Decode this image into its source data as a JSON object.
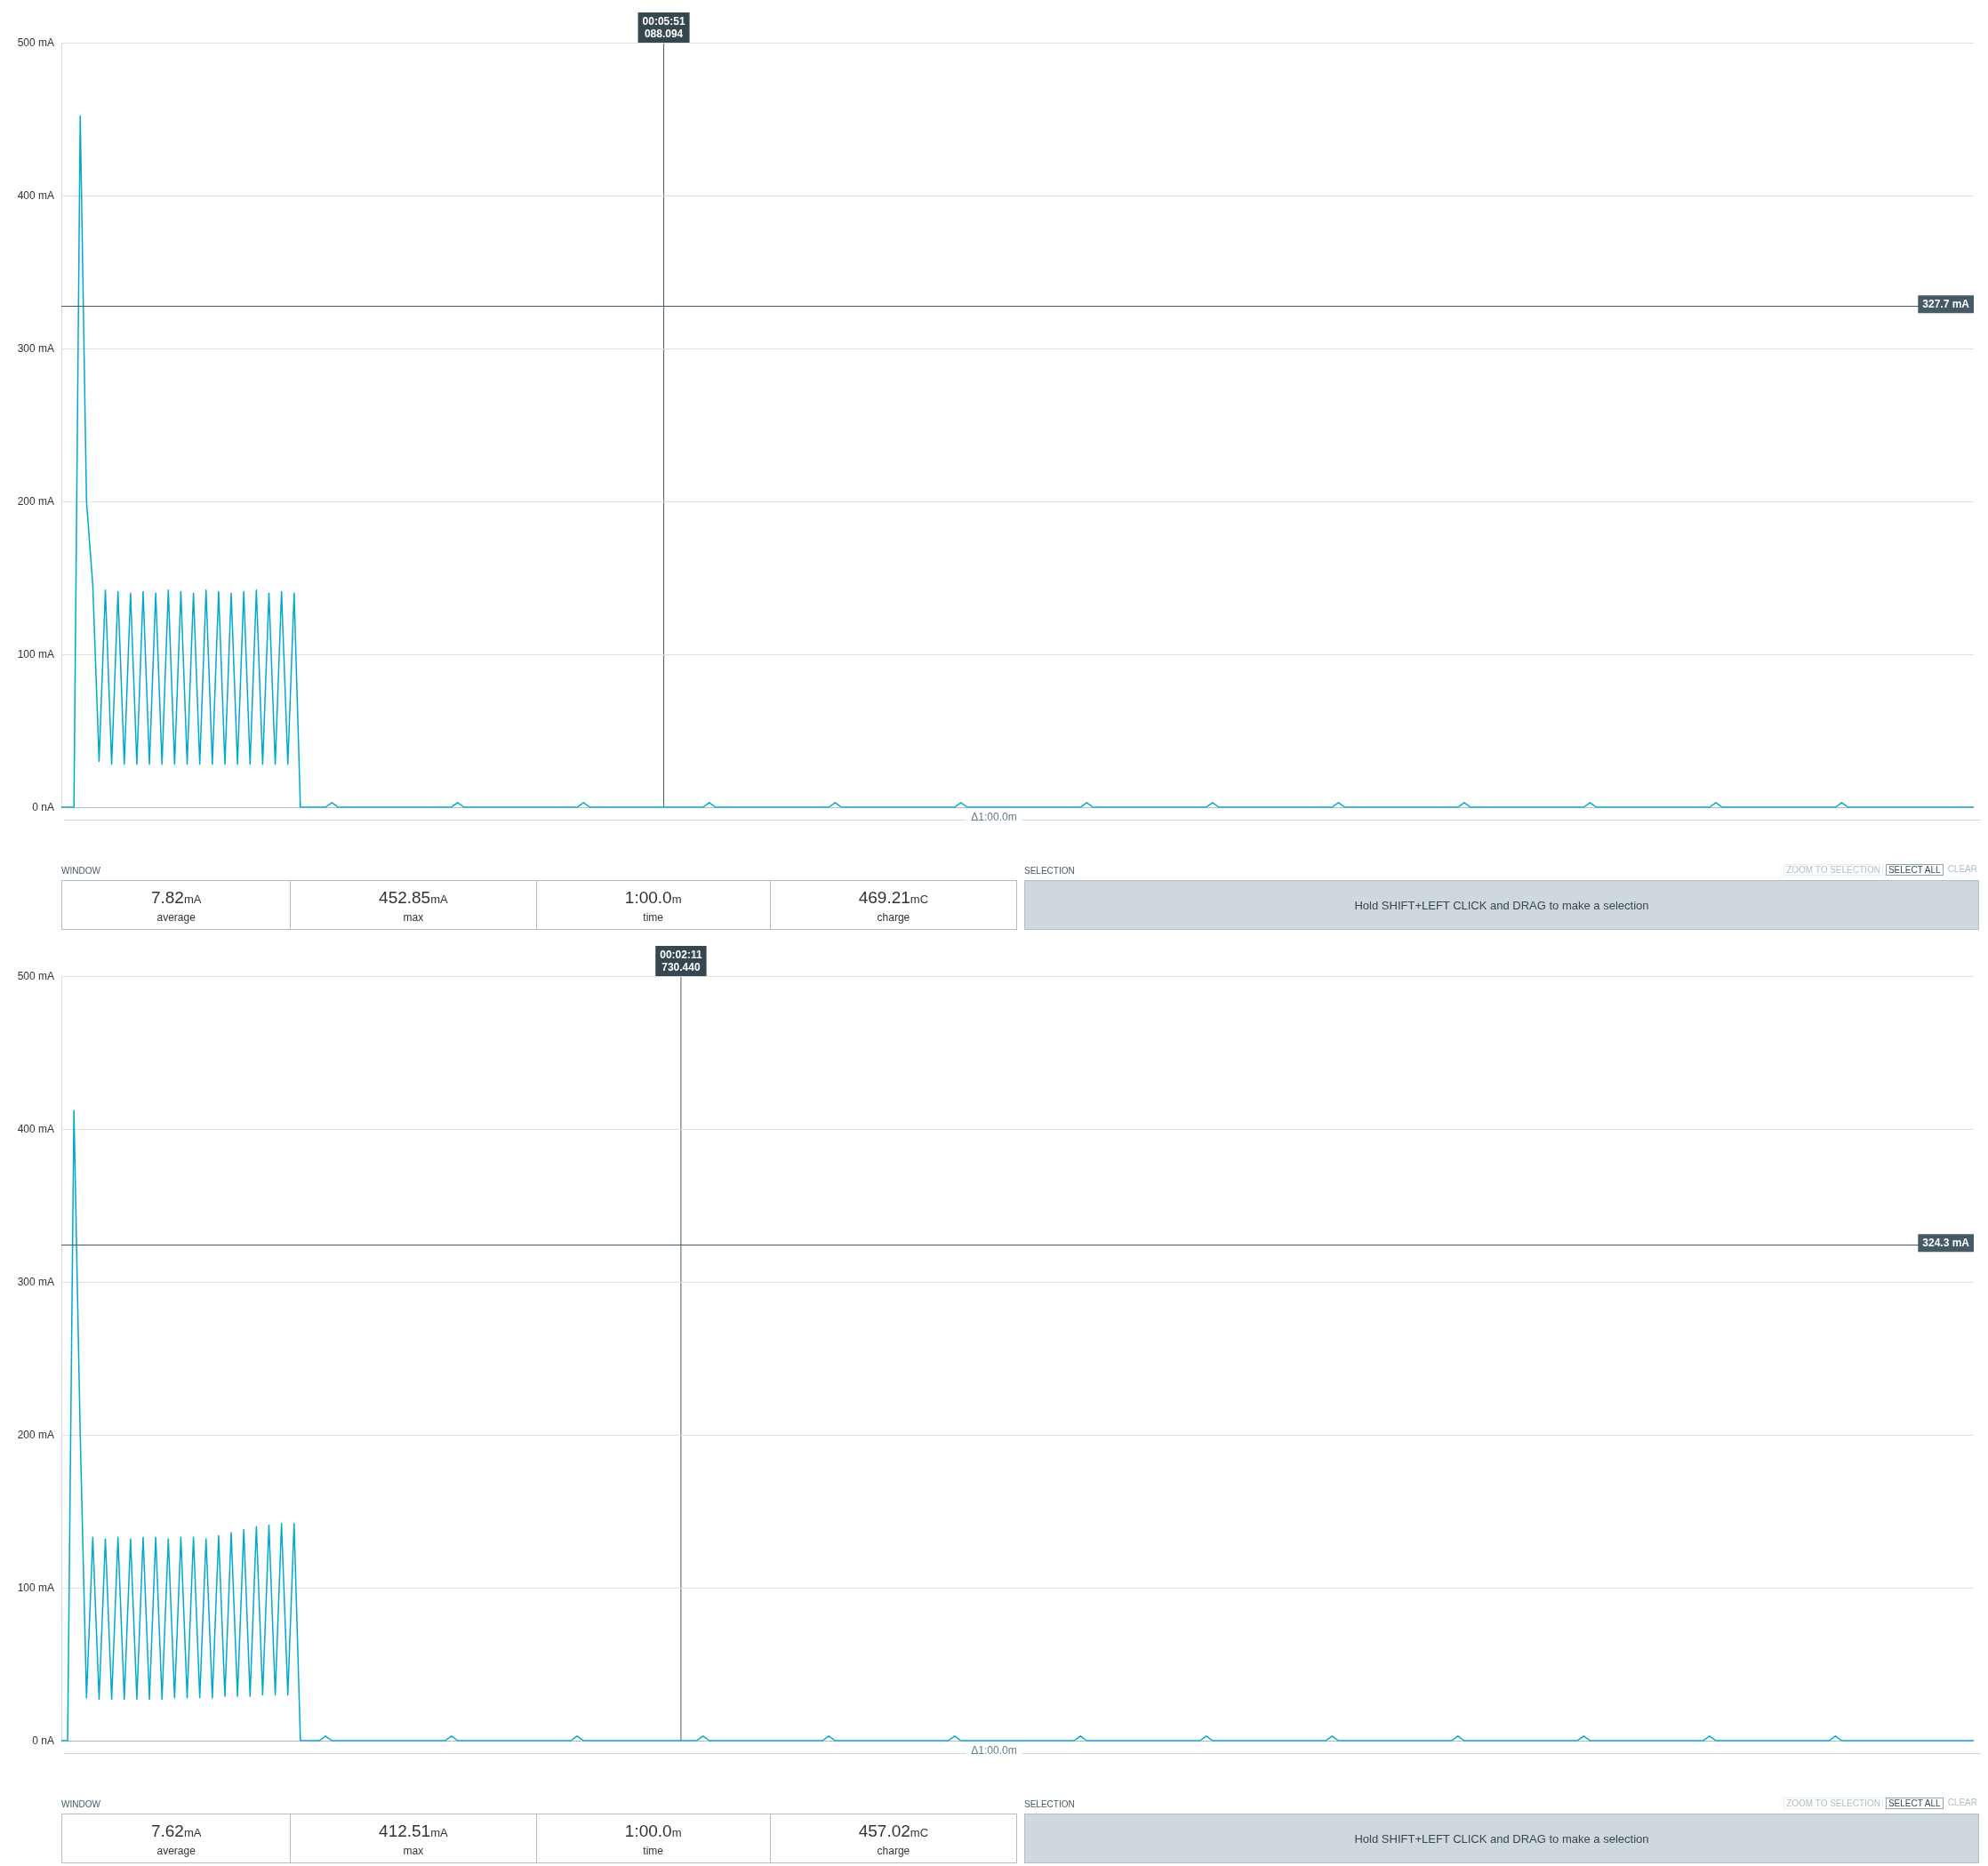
{
  "chart_data": [
    {
      "type": "line",
      "color": "#00a9ce",
      "line_style": "solid",
      "grid": "y",
      "tick_labels": "y",
      "categories": [
        null,
        null,
        null,
        null,
        null,
        null,
        null,
        null,
        null,
        null,
        null,
        null,
        null,
        null,
        null,
        null,
        null,
        null,
        null,
        null,
        null,
        null,
        null,
        null,
        null,
        null,
        null,
        null,
        null,
        null,
        null,
        null,
        null,
        null,
        null,
        null,
        null,
        null,
        null,
        null,
        null,
        null,
        null,
        null,
        null,
        null,
        null,
        null,
        null,
        null,
        null,
        null,
        null,
        null,
        null,
        null,
        null,
        null,
        null,
        null,
        null,
        null,
        null,
        null,
        null,
        null,
        null,
        null,
        null,
        null,
        null,
        null,
        null,
        null,
        null,
        null,
        null,
        null,
        null,
        null,
        null,
        null,
        null,
        null,
        null,
        null,
        null,
        null,
        null,
        null,
        null,
        null,
        null,
        null,
        null,
        null,
        null,
        null,
        null,
        null,
        null,
        null,
        null,
        null,
        null,
        null,
        null,
        null,
        null,
        null,
        null,
        null,
        null,
        null,
        null,
        null,
        null,
        null,
        null,
        null,
        null,
        null,
        null,
        null,
        null,
        null,
        null,
        null,
        null,
        null,
        null,
        null,
        null,
        null,
        null,
        null,
        null,
        null,
        null,
        null,
        null,
        null,
        null,
        null,
        null,
        null,
        null,
        null,
        null,
        null,
        null,
        null,
        null,
        null,
        null,
        null,
        null,
        null,
        null,
        null,
        null,
        null,
        null,
        null,
        null,
        null,
        null,
        null,
        null,
        null,
        null,
        null,
        null,
        null,
        null,
        null,
        null,
        null,
        null,
        null,
        null,
        null,
        null,
        null,
        null,
        null,
        null,
        null,
        null,
        null,
        null,
        null,
        null,
        null,
        null,
        null,
        null,
        null,
        null,
        null,
        null,
        null,
        null,
        null,
        null,
        null,
        null,
        null,
        null,
        null,
        null,
        null,
        null,
        null,
        null,
        null,
        null,
        null,
        null,
        null,
        null,
        null,
        null,
        null,
        null,
        null,
        null,
        null,
        null,
        null,
        null,
        null,
        null,
        null,
        null,
        null,
        null,
        null,
        null,
        null,
        null,
        null,
        null,
        null,
        null,
        null,
        null,
        null,
        null,
        null,
        null,
        null,
        null,
        null,
        null,
        null,
        null,
        null,
        null,
        null,
        null,
        null,
        null,
        null,
        null,
        null,
        null,
        null,
        null,
        null,
        null,
        null,
        null,
        null,
        null,
        null,
        null,
        null,
        null,
        null,
        null,
        null,
        null,
        null,
        null,
        null,
        null,
        null,
        null,
        null,
        null,
        null,
        null,
        null,
        null,
        null,
        null,
        null,
        null,
        null,
        null,
        null,
        null,
        null,
        null
      ],
      "values": [
        0,
        0,
        0,
        452,
        200,
        145,
        30,
        142,
        28,
        141,
        28,
        140,
        28,
        141,
        28,
        140,
        28,
        142,
        28,
        141,
        28,
        140,
        28,
        142,
        28,
        141,
        28,
        140,
        28,
        141,
        28,
        142,
        28,
        140,
        28,
        141,
        28,
        140,
        0,
        0,
        0,
        0,
        0,
        3,
        0,
        0,
        0,
        0,
        0,
        0,
        0,
        0,
        0,
        0,
        0,
        0,
        0,
        0,
        0,
        0,
        0,
        0,
        0,
        3,
        0,
        0,
        0,
        0,
        0,
        0,
        0,
        0,
        0,
        0,
        0,
        0,
        0,
        0,
        0,
        0,
        0,
        0,
        0,
        3,
        0,
        0,
        0,
        0,
        0,
        0,
        0,
        0,
        0,
        0,
        0,
        0,
        0,
        0,
        0,
        0,
        0,
        0,
        0,
        3,
        0,
        0,
        0,
        0,
        0,
        0,
        0,
        0,
        0,
        0,
        0,
        0,
        0,
        0,
        0,
        0,
        0,
        0,
        0,
        3,
        0,
        0,
        0,
        0,
        0,
        0,
        0,
        0,
        0,
        0,
        0,
        0,
        0,
        0,
        0,
        0,
        0,
        0,
        0,
        3,
        0,
        0,
        0,
        0,
        0,
        0,
        0,
        0,
        0,
        0,
        0,
        0,
        0,
        0,
        0,
        0,
        0,
        0,
        0,
        3,
        0,
        0,
        0,
        0,
        0,
        0,
        0,
        0,
        0,
        0,
        0,
        0,
        0,
        0,
        0,
        0,
        0,
        0,
        0,
        3,
        0,
        0,
        0,
        0,
        0,
        0,
        0,
        0,
        0,
        0,
        0,
        0,
        0,
        0,
        0,
        0,
        0,
        0,
        0,
        3,
        0,
        0,
        0,
        0,
        0,
        0,
        0,
        0,
        0,
        0,
        0,
        0,
        0,
        0,
        0,
        0,
        0,
        0,
        0,
        3,
        0,
        0,
        0,
        0,
        0,
        0,
        0,
        0,
        0,
        0,
        0,
        0,
        0,
        0,
        0,
        0,
        0,
        0,
        0,
        3,
        0,
        0,
        0,
        0,
        0,
        0,
        0,
        0,
        0,
        0,
        0,
        0,
        0,
        0,
        0,
        0,
        0,
        0,
        0,
        3,
        0,
        0,
        0,
        0,
        0,
        0,
        0,
        0,
        0,
        0,
        0,
        0,
        0,
        0,
        0,
        0,
        0,
        0,
        0,
        3,
        0,
        0,
        0,
        0,
        0,
        0,
        0,
        0,
        0,
        0,
        0,
        0,
        0,
        0,
        0,
        0,
        0,
        0,
        0,
        0,
        0
      ],
      "ylim": [
        0,
        500
      ],
      "yticks": [
        {
          "value": 0,
          "label": "0 nA"
        },
        {
          "value": 100,
          "label": "100 mA"
        },
        {
          "value": 200,
          "label": "200 mA"
        },
        {
          "value": 300,
          "label": "300 mA"
        },
        {
          "value": 400,
          "label": "400 mA"
        },
        {
          "value": 500,
          "label": "500 mA"
        }
      ],
      "ref_lines": [
        {
          "axis": "y",
          "value": 327.7,
          "label": "327.7 mA",
          "color": "#455a64"
        }
      ],
      "annotations": [
        "Δ1:00.0m",
        "00:05:51\n088.094"
      ]
    },
    {
      "type": "other",
      "annotations": [
        "WINDOW",
        "7.82mA",
        "average",
        "452.85mA",
        "max",
        "1:00.0m",
        "time",
        "469.21mC",
        "charge",
        "SELECTION",
        "ZOOM TO SELECTION",
        "SELECT ALL",
        "CLEAR",
        "Hold SHIFT+LEFT CLICK and DRAG to make a selection"
      ]
    },
    {
      "type": "line",
      "color": "#00a9ce",
      "line_style": "solid",
      "grid": "y",
      "tick_labels": "y",
      "categories": [
        null,
        null,
        null,
        null,
        null,
        null,
        null,
        null,
        null,
        null,
        null,
        null,
        null,
        null,
        null,
        null,
        null,
        null,
        null,
        null,
        null,
        null,
        null,
        null,
        null,
        null,
        null,
        null,
        null,
        null,
        null,
        null,
        null,
        null,
        null,
        null,
        null,
        null,
        null,
        null,
        null,
        null,
        null,
        null,
        null,
        null,
        null,
        null,
        null,
        null,
        null,
        null,
        null,
        null,
        null,
        null,
        null,
        null,
        null,
        null,
        null,
        null,
        null,
        null,
        null,
        null,
        null,
        null,
        null,
        null,
        null,
        null,
        null,
        null,
        null,
        null,
        null,
        null,
        null,
        null,
        null,
        null,
        null,
        null,
        null,
        null,
        null,
        null,
        null,
        null,
        null,
        null,
        null,
        null,
        null,
        null,
        null,
        null,
        null,
        null,
        null,
        null,
        null,
        null,
        null,
        null,
        null,
        null,
        null,
        null,
        null,
        null,
        null,
        null,
        null,
        null,
        null,
        null,
        null,
        null,
        null,
        null,
        null,
        null,
        null,
        null,
        null,
        null,
        null,
        null,
        null,
        null,
        null,
        null,
        null,
        null,
        null,
        null,
        null,
        null,
        null,
        null,
        null,
        null,
        null,
        null,
        null,
        null,
        null,
        null,
        null,
        null,
        null,
        null,
        null,
        null,
        null,
        null,
        null,
        null,
        null,
        null,
        null,
        null,
        null,
        null,
        null,
        null,
        null,
        null,
        null,
        null,
        null,
        null,
        null,
        null,
        null,
        null,
        null,
        null,
        null,
        null,
        null,
        null,
        null,
        null,
        null,
        null,
        null,
        null,
        null,
        null,
        null,
        null,
        null,
        null,
        null,
        null,
        null,
        null,
        null,
        null,
        null,
        null,
        null,
        null,
        null,
        null,
        null,
        null,
        null,
        null,
        null,
        null,
        null,
        null,
        null,
        null,
        null,
        null,
        null,
        null,
        null,
        null,
        null,
        null,
        null,
        null,
        null,
        null,
        null,
        null,
        null,
        null,
        null,
        null,
        null,
        null,
        null,
        null,
        null,
        null,
        null,
        null,
        null,
        null,
        null,
        null,
        null,
        null,
        null,
        null,
        null,
        null,
        null,
        null,
        null,
        null,
        null,
        null,
        null,
        null,
        null,
        null,
        null,
        null,
        null,
        null,
        null,
        null,
        null,
        null,
        null,
        null,
        null,
        null,
        null,
        null,
        null,
        null,
        null,
        null,
        null,
        null,
        null,
        null,
        null,
        null,
        null,
        null,
        null,
        null,
        null,
        null,
        null,
        null,
        null,
        null,
        null,
        null,
        null,
        null,
        null,
        null,
        null
      ],
      "values": [
        0,
        0,
        412,
        200,
        28,
        133,
        27,
        132,
        27,
        133,
        27,
        132,
        27,
        133,
        27,
        133,
        27,
        132,
        28,
        133,
        28,
        133,
        28,
        132,
        28,
        134,
        29,
        136,
        29,
        138,
        29,
        140,
        30,
        141,
        30,
        142,
        30,
        142,
        0,
        0,
        0,
        0,
        3,
        0,
        0,
        0,
        0,
        0,
        0,
        0,
        0,
        0,
        0,
        0,
        0,
        0,
        0,
        0,
        0,
        0,
        0,
        0,
        3,
        0,
        0,
        0,
        0,
        0,
        0,
        0,
        0,
        0,
        0,
        0,
        0,
        0,
        0,
        0,
        0,
        0,
        0,
        0,
        3,
        0,
        0,
        0,
        0,
        0,
        0,
        0,
        0,
        0,
        0,
        0,
        0,
        0,
        0,
        0,
        0,
        0,
        0,
        0,
        3,
        0,
        0,
        0,
        0,
        0,
        0,
        0,
        0,
        0,
        0,
        0,
        0,
        0,
        0,
        0,
        0,
        0,
        0,
        0,
        3,
        0,
        0,
        0,
        0,
        0,
        0,
        0,
        0,
        0,
        0,
        0,
        0,
        0,
        0,
        0,
        0,
        0,
        0,
        0,
        3,
        0,
        0,
        0,
        0,
        0,
        0,
        0,
        0,
        0,
        0,
        0,
        0,
        0,
        0,
        0,
        0,
        0,
        0,
        0,
        3,
        0,
        0,
        0,
        0,
        0,
        0,
        0,
        0,
        0,
        0,
        0,
        0,
        0,
        0,
        0,
        0,
        0,
        0,
        0,
        3,
        0,
        0,
        0,
        0,
        0,
        0,
        0,
        0,
        0,
        0,
        0,
        0,
        0,
        0,
        0,
        0,
        0,
        0,
        0,
        3,
        0,
        0,
        0,
        0,
        0,
        0,
        0,
        0,
        0,
        0,
        0,
        0,
        0,
        0,
        0,
        0,
        0,
        0,
        0,
        3,
        0,
        0,
        0,
        0,
        0,
        0,
        0,
        0,
        0,
        0,
        0,
        0,
        0,
        0,
        0,
        0,
        0,
        0,
        0,
        3,
        0,
        0,
        0,
        0,
        0,
        0,
        0,
        0,
        0,
        0,
        0,
        0,
        0,
        0,
        0,
        0,
        0,
        0,
        0,
        3,
        0,
        0,
        0,
        0,
        0,
        0,
        0,
        0,
        0,
        0,
        0,
        0,
        0,
        0,
        0,
        0,
        0,
        0,
        0,
        3,
        0,
        0,
        0,
        0,
        0,
        0,
        0,
        0,
        0,
        0,
        0,
        0,
        0,
        0,
        0,
        0,
        0,
        0,
        0,
        0,
        0,
        0
      ],
      "ylim": [
        0,
        500
      ],
      "yticks": [
        {
          "value": 0,
          "label": "0 nA"
        },
        {
          "value": 100,
          "label": "100 mA"
        },
        {
          "value": 200,
          "label": "200 mA"
        },
        {
          "value": 300,
          "label": "300 mA"
        },
        {
          "value": 400,
          "label": "400 mA"
        },
        {
          "value": 500,
          "label": "500 mA"
        }
      ],
      "ref_lines": [
        {
          "axis": "y",
          "value": 324.3,
          "label": "324.3 mA",
          "color": "#455a64"
        }
      ],
      "annotations": [
        "Δ1:00.0m",
        "00:02:11\n730.440"
      ]
    },
    {
      "type": "other",
      "annotations": [
        "WINDOW",
        "7.62mA",
        "average",
        "412.51mA",
        "max",
        "1:00.0m",
        "time",
        "457.02mC",
        "charge",
        "SELECTION",
        "ZOOM TO SELECTION",
        "SELECT ALL",
        "CLEAR",
        "Hold SHIFT+LEFT CLICK and DRAG to make a selection"
      ]
    }
  ]
}
